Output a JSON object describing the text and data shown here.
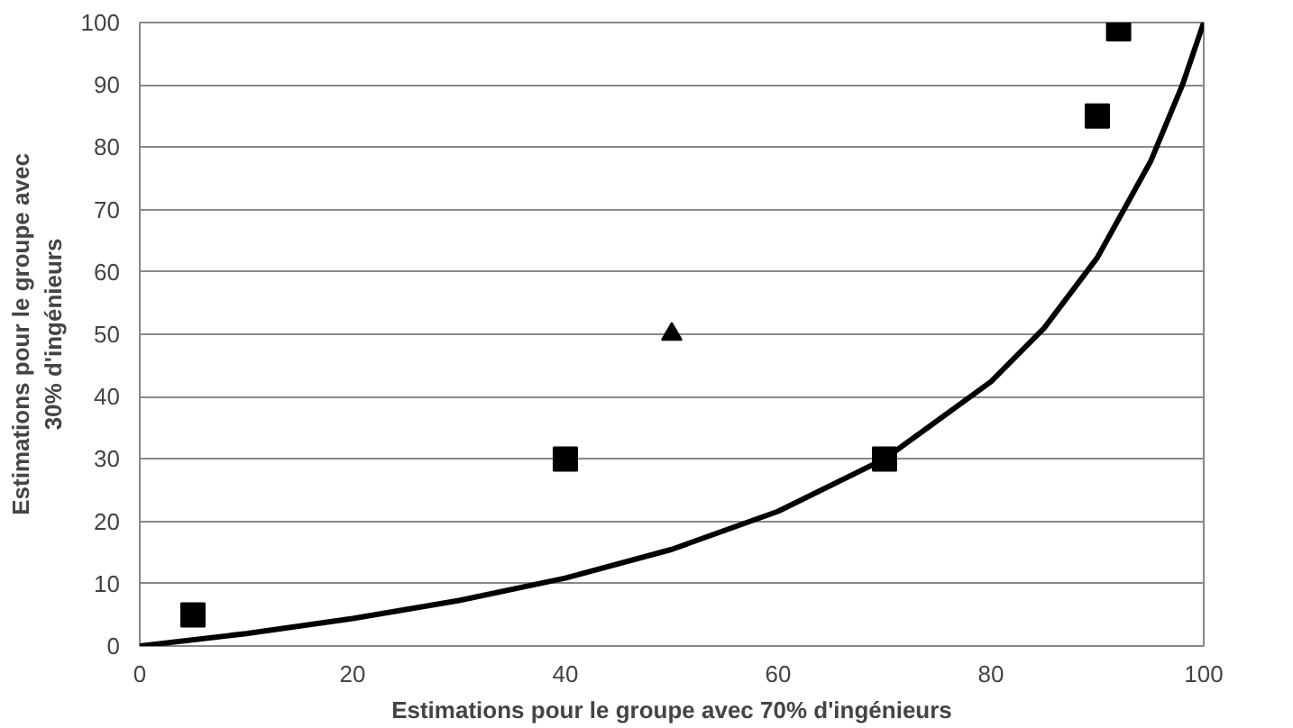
{
  "chart_data": {
    "type": "scatter",
    "xlabel": "Estimations pour le groupe avec 70% d'ingénieurs",
    "ylabel": "Estimations pour le groupe avec\n30% d'ingénieurs",
    "xlim": [
      0,
      100
    ],
    "ylim": [
      0,
      100
    ],
    "xticks": [
      0,
      20,
      40,
      60,
      80,
      100
    ],
    "yticks": [
      0,
      10,
      20,
      30,
      40,
      50,
      60,
      70,
      80,
      90,
      100
    ],
    "grid": "y",
    "series": [
      {
        "type": "line",
        "color": "#000000",
        "marker": "none",
        "x": [
          0,
          10,
          20,
          30,
          40,
          50,
          60,
          70,
          80,
          85,
          90,
          95,
          98,
          100
        ],
        "values": [
          0,
          2.0,
          4.4,
          7.3,
          10.9,
          15.5,
          21.6,
          30.0,
          42.4,
          51.0,
          62.3,
          77.7,
          90.0,
          100
        ]
      },
      {
        "color": "#000000",
        "marker": "square",
        "x": [
          5,
          40,
          70,
          90,
          92
        ],
        "values": [
          5,
          30,
          30,
          85,
          99
        ]
      },
      {
        "color": "#000000",
        "marker": "triangle",
        "x": [
          50
        ],
        "values": [
          50
        ]
      }
    ]
  }
}
